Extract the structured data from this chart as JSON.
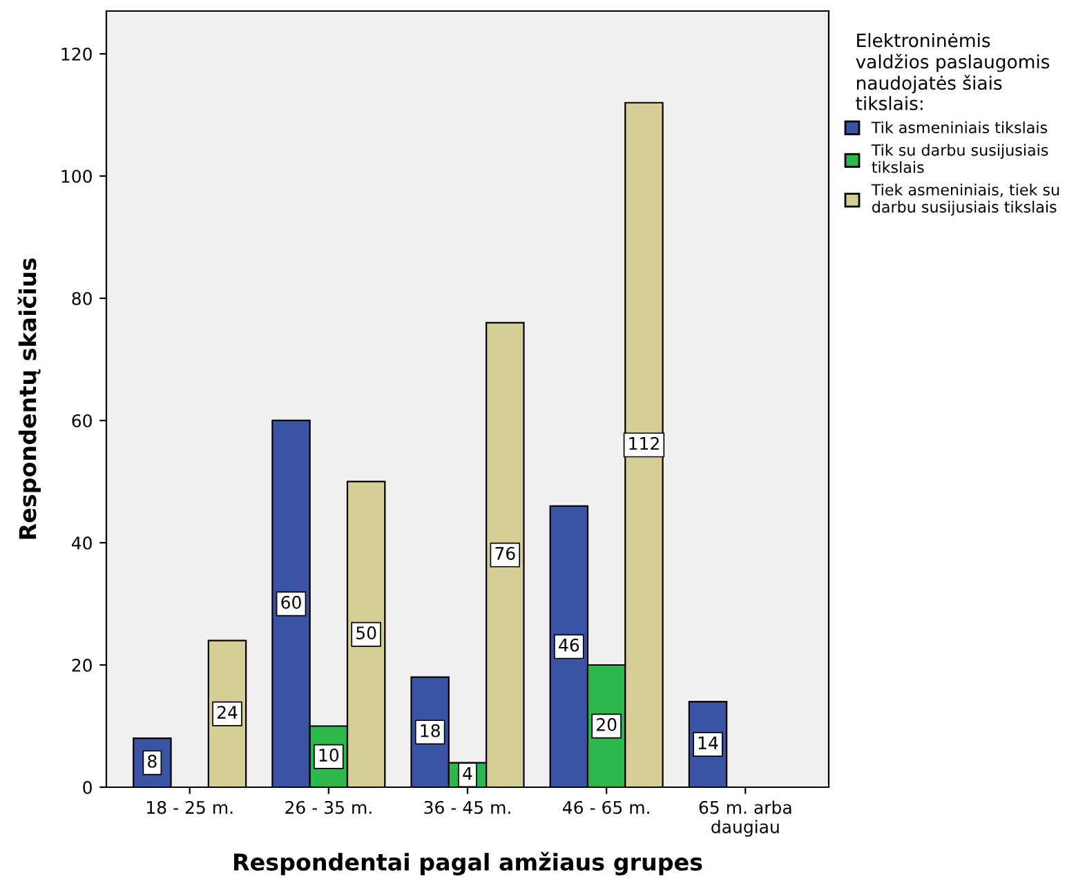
{
  "chart_data": {
    "type": "bar",
    "xlabel": "Respondentai pagal amžiaus grupes",
    "ylabel": "Respondentų skaičius",
    "legend_title": "Elektroninėmis\nvaldžios paslaugomis\nnaudojatės šiais\ntikslais:",
    "categories": [
      "18 - 25 m.",
      "26 - 35 m.",
      "36 - 45 m.",
      "46 - 65 m.",
      "65 m. arba\ndaugiau"
    ],
    "series": [
      {
        "name": "Tik asmeniniais tikslais",
        "color": "#3a53a4",
        "values": [
          8,
          60,
          18,
          46,
          14
        ]
      },
      {
        "name": "Tik su darbu susijusiais\ntikslais",
        "color": "#2db84c",
        "values": [
          null,
          10,
          4,
          20,
          null
        ]
      },
      {
        "name": "Tiek asmeniniais, tiek su\ndarbu susijusiais tikslais",
        "color": "#d5ce97",
        "values": [
          24,
          50,
          76,
          112,
          null
        ]
      }
    ],
    "ylim": [
      0,
      127
    ],
    "yticks": [
      0,
      20,
      40,
      60,
      80,
      100,
      120
    ],
    "grid": false,
    "legend": "top right",
    "data_labels": true
  }
}
